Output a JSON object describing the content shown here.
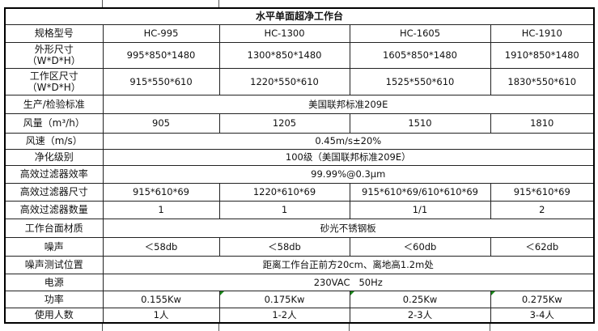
{
  "title": "水平单面超净工作台",
  "comment_indicator_color": "#1a8a1a",
  "rows": [
    {
      "label": "规格型号",
      "cells": [
        "HC-995",
        "HC-1300",
        "HC-1605",
        "HC-1910"
      ]
    },
    {
      "label": "外形尺寸",
      "sublabel": "（W*D*H）",
      "cells": [
        "995*850*1480",
        "1300*850*1480",
        "1605*850*1480",
        "1910*850*1480"
      ]
    },
    {
      "label": "工作区尺寸",
      "sublabel": "（W*D*H）",
      "cells": [
        "915*550*610",
        "1220*550*610",
        "1525*550*610",
        "1830*550*610"
      ]
    },
    {
      "label": "生产/检验标准",
      "span": "美国联邦标准209E"
    },
    {
      "label": "风量（m³/h）",
      "cells": [
        "905",
        "1205",
        "1510",
        "1810"
      ]
    },
    {
      "label": "风速（m/s）",
      "span": "0.45m/s±20%"
    },
    {
      "label": "净化级别",
      "span": "100级（美国联邦标准209E）"
    },
    {
      "label": "高效过滤器效率",
      "span": "99.99%@0.3μm"
    },
    {
      "label": "高效过滤器尺寸",
      "cells": [
        "915*610*69",
        "1220*610*69",
        "915*610*69/610*610*69",
        "915*610*69"
      ]
    },
    {
      "label": "高效过滤器数量",
      "cells": [
        "1",
        "1",
        "1/1",
        "2"
      ]
    },
    {
      "label": "工作台面材质",
      "span": "砂光不锈钢板"
    },
    {
      "label": "噪声",
      "cells": [
        "＜58db",
        "＜58db",
        "＜60db",
        "＜62db"
      ]
    },
    {
      "label": "噪声测试位置",
      "span": "距离工作台正前方20cm、离地高1.2m处"
    },
    {
      "label": "电源",
      "span": "230VAC   50Hz"
    },
    {
      "label": "功率",
      "cells": [
        "0.155Kw",
        "0.175Kw",
        "0.25Kw",
        "0.275Kw"
      ],
      "comments": [
        false,
        true,
        true,
        true
      ]
    },
    {
      "label": "使用人数",
      "cells": [
        "1人",
        "1-2人",
        "2-3人",
        "3-4人"
      ]
    }
  ]
}
